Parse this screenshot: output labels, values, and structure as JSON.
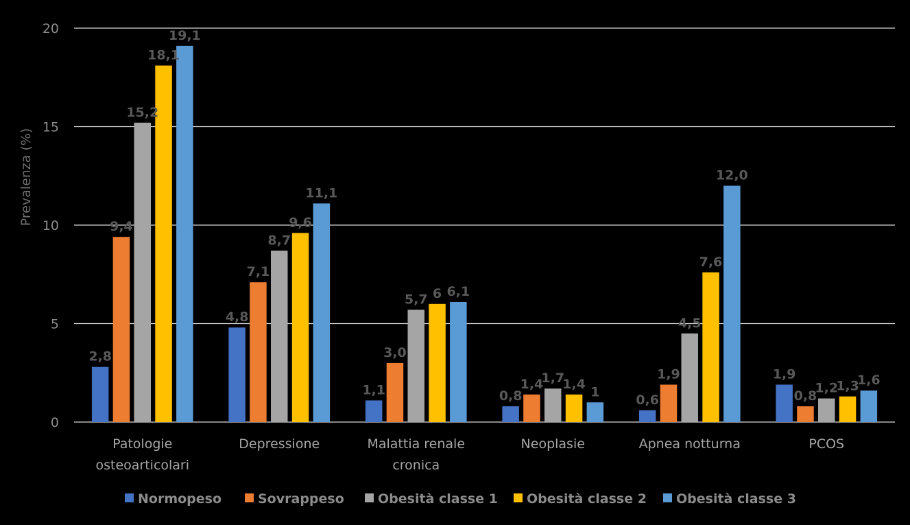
{
  "chart_data": {
    "type": "bar",
    "title": "",
    "xlabel": "",
    "ylabel": "Prevalenza (%)",
    "ylim": [
      0,
      20
    ],
    "yticks": [
      "0",
      "5",
      "10",
      "15",
      "20"
    ],
    "ytick_values": [
      0,
      5,
      10,
      15,
      20
    ],
    "grid": true,
    "legend_position": "bottom",
    "categories": [
      [
        "Patologie",
        "osteoarticolari"
      ],
      [
        "Depressione"
      ],
      [
        "Malattia renale",
        "cronica"
      ],
      [
        "Neoplasie"
      ],
      [
        "Apnea notturna"
      ],
      [
        "PCOS"
      ]
    ],
    "series": [
      {
        "name": "Normopeso",
        "color": "#4472c4",
        "values": [
          2.8,
          4.8,
          1.1,
          0.8,
          0.6,
          1.9
        ],
        "labels": [
          "2,8",
          "4,8",
          "1,1",
          "0,8",
          "0,6",
          "1,9"
        ]
      },
      {
        "name": "Sovrappeso",
        "color": "#ed7d31",
        "values": [
          9.4,
          7.1,
          3.0,
          1.4,
          1.9,
          0.8
        ],
        "labels": [
          "9,4",
          "7,1",
          "3,0",
          "1,4",
          "1,9",
          "0,8"
        ]
      },
      {
        "name": "Obesità classe 1",
        "color": "#a5a5a5",
        "values": [
          15.2,
          8.7,
          5.7,
          1.7,
          4.5,
          1.2
        ],
        "labels": [
          "15,2",
          "8,7",
          "5,7",
          "1,7",
          "4,5",
          "1,2"
        ]
      },
      {
        "name": "Obesità classe 2",
        "color": "#ffc000",
        "values": [
          18.1,
          9.6,
          6.0,
          1.4,
          7.6,
          1.3
        ],
        "labels": [
          "18,1",
          "9,6",
          "6",
          "1,4",
          "7,6",
          "1,3"
        ]
      },
      {
        "name": "Obesità classe 3",
        "color": "#5b9bd5",
        "values": [
          19.1,
          11.1,
          6.1,
          1.0,
          12.0,
          1.6
        ],
        "labels": [
          "19,1",
          "11,1",
          "6,1",
          "1",
          "12,0",
          "1,6"
        ]
      }
    ]
  }
}
